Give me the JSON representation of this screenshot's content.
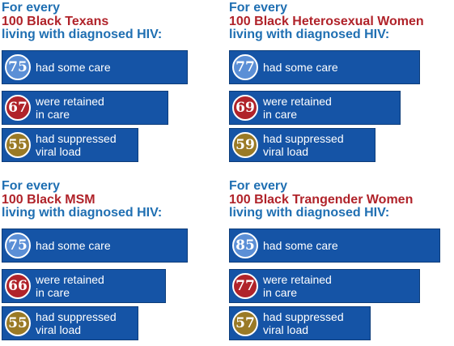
{
  "colors": {
    "heading_blue": "#1f6fb2",
    "heading_red": "#b0232a",
    "bar_blue": "#1554a6",
    "care_badge": "#5b8fd6",
    "retained_badge": "#b0232a",
    "suppressed_badge": "#9a7a26"
  },
  "chart_data": [
    {
      "type": "bar",
      "title_lines": [
        "For every",
        "100 Black Texans",
        "living with diagnosed HIV:"
      ],
      "categories": [
        "had some care",
        "were retained in care",
        "had suppressed viral load"
      ],
      "label_lines": [
        [
          "had some care"
        ],
        [
          "were retained",
          "in care"
        ],
        [
          "had suppressed",
          "viral load"
        ]
      ],
      "values": [
        75,
        67,
        55
      ],
      "value_labels": [
        "75",
        "67",
        "55"
      ],
      "xlim": [
        0,
        100
      ]
    },
    {
      "type": "bar",
      "title_lines": [
        "For every",
        "100 Black Heterosexual Women",
        "living with diagnosed HIV:"
      ],
      "categories": [
        "had some care",
        "were retained in care",
        "had suppressed viral load"
      ],
      "label_lines": [
        [
          "had some care"
        ],
        [
          "were retained",
          "in care"
        ],
        [
          "had suppressed",
          "viral load"
        ]
      ],
      "values": [
        77,
        69,
        59
      ],
      "value_labels": [
        "77",
        "69",
        "59"
      ],
      "xlim": [
        0,
        100
      ]
    },
    {
      "type": "bar",
      "title_lines": [
        "For every",
        "100 Black MSM",
        "living with diagnosed HIV:"
      ],
      "categories": [
        "had some care",
        "were retained in care",
        "had suppressed viral load"
      ],
      "label_lines": [
        [
          "had some care"
        ],
        [
          "were retained",
          "in care"
        ],
        [
          "had suppressed",
          "viral load"
        ]
      ],
      "values": [
        75,
        66,
        55
      ],
      "value_labels": [
        "75",
        "66",
        "55"
      ],
      "xlim": [
        0,
        100
      ]
    },
    {
      "type": "bar",
      "title_lines": [
        "For every",
        "100 Black Trangender Women",
        "living with diagnosed HIV:"
      ],
      "categories": [
        "had some care",
        "were retained in care",
        "had suppressed viral load"
      ],
      "label_lines": [
        [
          "had some care"
        ],
        [
          "were retained",
          "in care"
        ],
        [
          "had suppressed",
          "viral load"
        ]
      ],
      "values": [
        85,
        77,
        57
      ],
      "value_labels": [
        "85",
        "77",
        "57"
      ],
      "xlim": [
        0,
        100
      ]
    }
  ]
}
